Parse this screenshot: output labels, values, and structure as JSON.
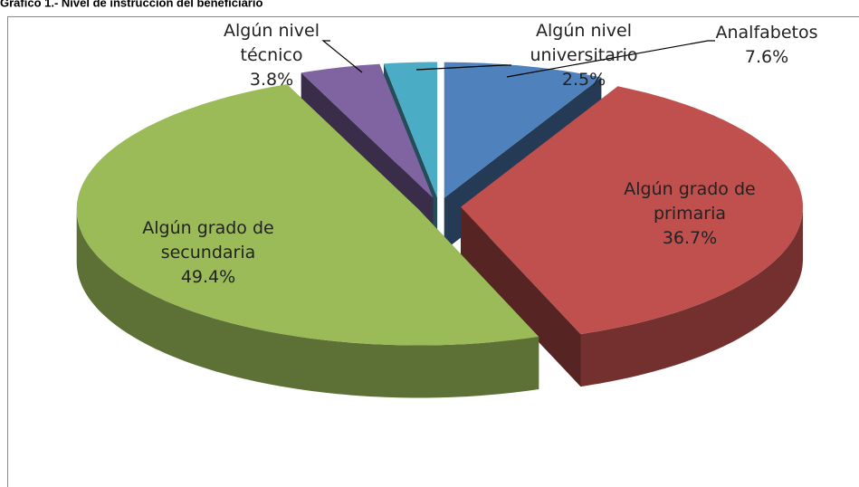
{
  "chart_data": {
    "type": "pie3d",
    "title": "Gráfico 1.- Nivel de instrucción del beneficiario",
    "categories": [
      "Analfabetos",
      "Algún grado de primaria",
      "Algún grado de secundaria",
      "Algún nivel técnico",
      "Algún nivel universitario"
    ],
    "values": [
      7.6,
      36.7,
      49.4,
      3.8,
      2.5
    ],
    "value_labels": [
      "7.6%",
      "36.7%",
      "49.4%",
      "3.8%",
      "2.5%"
    ],
    "colors": [
      "#4f81bd",
      "#c0504d",
      "#9bbb59",
      "#8064a2",
      "#4bacc6"
    ]
  }
}
